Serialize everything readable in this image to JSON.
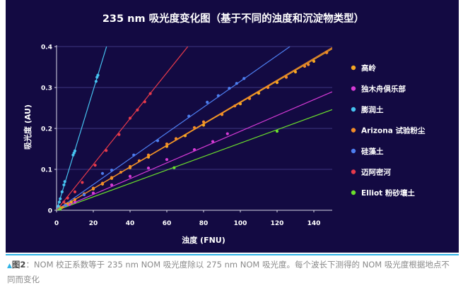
{
  "chart_data": {
    "type": "scatter",
    "title": "235 nm 吸光度变化图（基于不同的浊度和沉淀物类型）",
    "xlabel": "浊度 (FNU)",
    "ylabel": "吸光度 (AU)",
    "xlim": [
      0,
      150
    ],
    "ylim": [
      0,
      0.4
    ],
    "xticks": [
      "0",
      "20",
      "40",
      "60",
      "80",
      "100",
      "120",
      "140"
    ],
    "yticks": [
      "0",
      "0.1",
      "0.2",
      "0.3",
      "0.4"
    ],
    "legend_position": "right",
    "grid": "horizontal",
    "background": "#130a42",
    "series": [
      {
        "name": "高岭",
        "color": "#f5a623",
        "points": [
          [
            2,
            0.006
          ],
          [
            5,
            0.014
          ],
          [
            8,
            0.02
          ],
          [
            10,
            0.026
          ],
          [
            15,
            0.04
          ],
          [
            20,
            0.052
          ],
          [
            25,
            0.064
          ],
          [
            30,
            0.078
          ],
          [
            40,
            0.104
          ],
          [
            50,
            0.13
          ],
          [
            60,
            0.156
          ],
          [
            70,
            0.182
          ],
          [
            80,
            0.208
          ],
          [
            90,
            0.234
          ],
          [
            100,
            0.26
          ],
          [
            110,
            0.286
          ],
          [
            120,
            0.312
          ],
          [
            130,
            0.338
          ],
          [
            140,
            0.364
          ]
        ],
        "fit": [
          0.0,
          0.00263
        ]
      },
      {
        "name": "独木舟俱乐部",
        "color": "#d63ad6",
        "points": [
          [
            2,
            0.004
          ],
          [
            7,
            0.014
          ],
          [
            10,
            0.02
          ],
          [
            20,
            0.042
          ],
          [
            30,
            0.062
          ],
          [
            40,
            0.083
          ],
          [
            50,
            0.103
          ],
          [
            60,
            0.124
          ],
          [
            75,
            0.148
          ],
          [
            85,
            0.168
          ],
          [
            93,
            0.187
          ]
        ],
        "fit": [
          0.0,
          0.00193
        ]
      },
      {
        "name": "膨润土",
        "color": "#46c2f0",
        "points": [
          [
            1,
            0.01
          ],
          [
            1.5,
            0.02
          ],
          [
            2,
            0.028
          ],
          [
            3,
            0.045
          ],
          [
            4,
            0.062
          ],
          [
            4.5,
            0.07
          ],
          [
            9,
            0.135
          ],
          [
            9.5,
            0.14
          ],
          [
            10,
            0.145
          ],
          [
            21.5,
            0.315
          ],
          [
            22,
            0.325
          ],
          [
            22.5,
            0.33
          ]
        ],
        "fit": [
          0.0,
          0.0147
        ]
      },
      {
        "name": "Arizona 试验粉尘",
        "color": "#f28c28",
        "points": [
          [
            3,
            0.007
          ],
          [
            6,
            0.016
          ],
          [
            10,
            0.026
          ],
          [
            15,
            0.04
          ],
          [
            20,
            0.054
          ],
          [
            25,
            0.066
          ],
          [
            30,
            0.08
          ],
          [
            35,
            0.093
          ],
          [
            40,
            0.107
          ],
          [
            45,
            0.121
          ],
          [
            50,
            0.135
          ],
          [
            60,
            0.162
          ],
          [
            65,
            0.175
          ],
          [
            75,
            0.202
          ],
          [
            80,
            0.216
          ],
          [
            90,
            0.235
          ],
          [
            97,
            0.255
          ],
          [
            105,
            0.273
          ],
          [
            115,
            0.3
          ],
          [
            125,
            0.325
          ],
          [
            135,
            0.352
          ],
          [
            137,
            0.356
          ],
          [
            147,
            0.385
          ]
        ],
        "fit": [
          0.0,
          0.00265
        ]
      },
      {
        "name": "硅藻土",
        "color": "#4d7ef0",
        "points": [
          [
            5,
            0.012
          ],
          [
            15,
            0.038
          ],
          [
            25,
            0.09
          ],
          [
            30,
            0.098
          ],
          [
            42,
            0.135
          ],
          [
            55,
            0.17
          ],
          [
            72,
            0.23
          ],
          [
            82,
            0.264
          ],
          [
            88,
            0.28
          ],
          [
            94,
            0.298
          ],
          [
            98,
            0.31
          ],
          [
            102,
            0.322
          ]
        ],
        "fit": [
          0.0,
          0.00315
        ]
      },
      {
        "name": "迈阿密河",
        "color": "#e83a4b",
        "points": [
          [
            4,
            0.02
          ],
          [
            6,
            0.03
          ],
          [
            10,
            0.045
          ],
          [
            14,
            0.068
          ],
          [
            21,
            0.11
          ],
          [
            27,
            0.146
          ],
          [
            34,
            0.185
          ],
          [
            40,
            0.225
          ],
          [
            44,
            0.245
          ],
          [
            48,
            0.265
          ],
          [
            51,
            0.285
          ]
        ],
        "fit": [
          0.0,
          0.0056
        ]
      },
      {
        "name": "Elliot 粉砂壤土",
        "color": "#6be02c",
        "points": [
          [
            2,
            0.003
          ],
          [
            64,
            0.104
          ],
          [
            120,
            0.193
          ]
        ],
        "fit": [
          0.0,
          0.00164
        ]
      }
    ]
  },
  "caption": {
    "marker": "▲",
    "lead": "图2",
    "text": "：NOM 校正系数等于 235 nm NOM 吸光度除以 275 nm NOM 吸光度。每个波长下测得的 NOM 吸光度根据地点不同而变化"
  }
}
